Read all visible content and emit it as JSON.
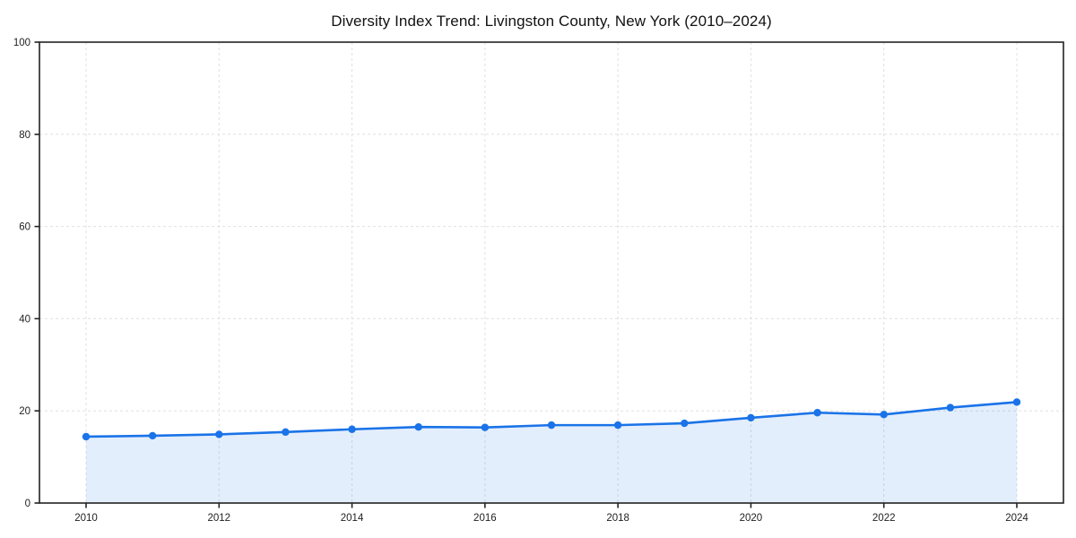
{
  "chart_data": {
    "type": "area",
    "title": "Diversity Index Trend: Livingston County, New York (2010–2024)",
    "series_name": "Diversity Index",
    "x": [
      2010,
      2011,
      2012,
      2013,
      2014,
      2015,
      2016,
      2017,
      2018,
      2019,
      2020,
      2021,
      2022,
      2023,
      2024
    ],
    "values": [
      14.4,
      14.6,
      14.9,
      15.4,
      16.0,
      16.5,
      16.4,
      16.9,
      16.9,
      17.3,
      18.5,
      19.6,
      19.2,
      20.7,
      21.9
    ],
    "xlabel": "",
    "ylabel": "",
    "ylim": [
      0,
      100
    ],
    "y_ticks": [
      0,
      20,
      40,
      60,
      80,
      100
    ],
    "x_ticks": [
      2010,
      2012,
      2014,
      2016,
      2018,
      2020,
      2022,
      2024
    ],
    "grid": "dashed",
    "legend_position": "none",
    "colors": {
      "line": "#1a73e8",
      "marker": "#1a73e8",
      "fill": "#1a73e8",
      "fill_opacity": "0.12",
      "grid": "#e0e0e0",
      "axis_border": "#222222",
      "tick_label": "#1f1f1f",
      "background": "#ffffff"
    }
  }
}
